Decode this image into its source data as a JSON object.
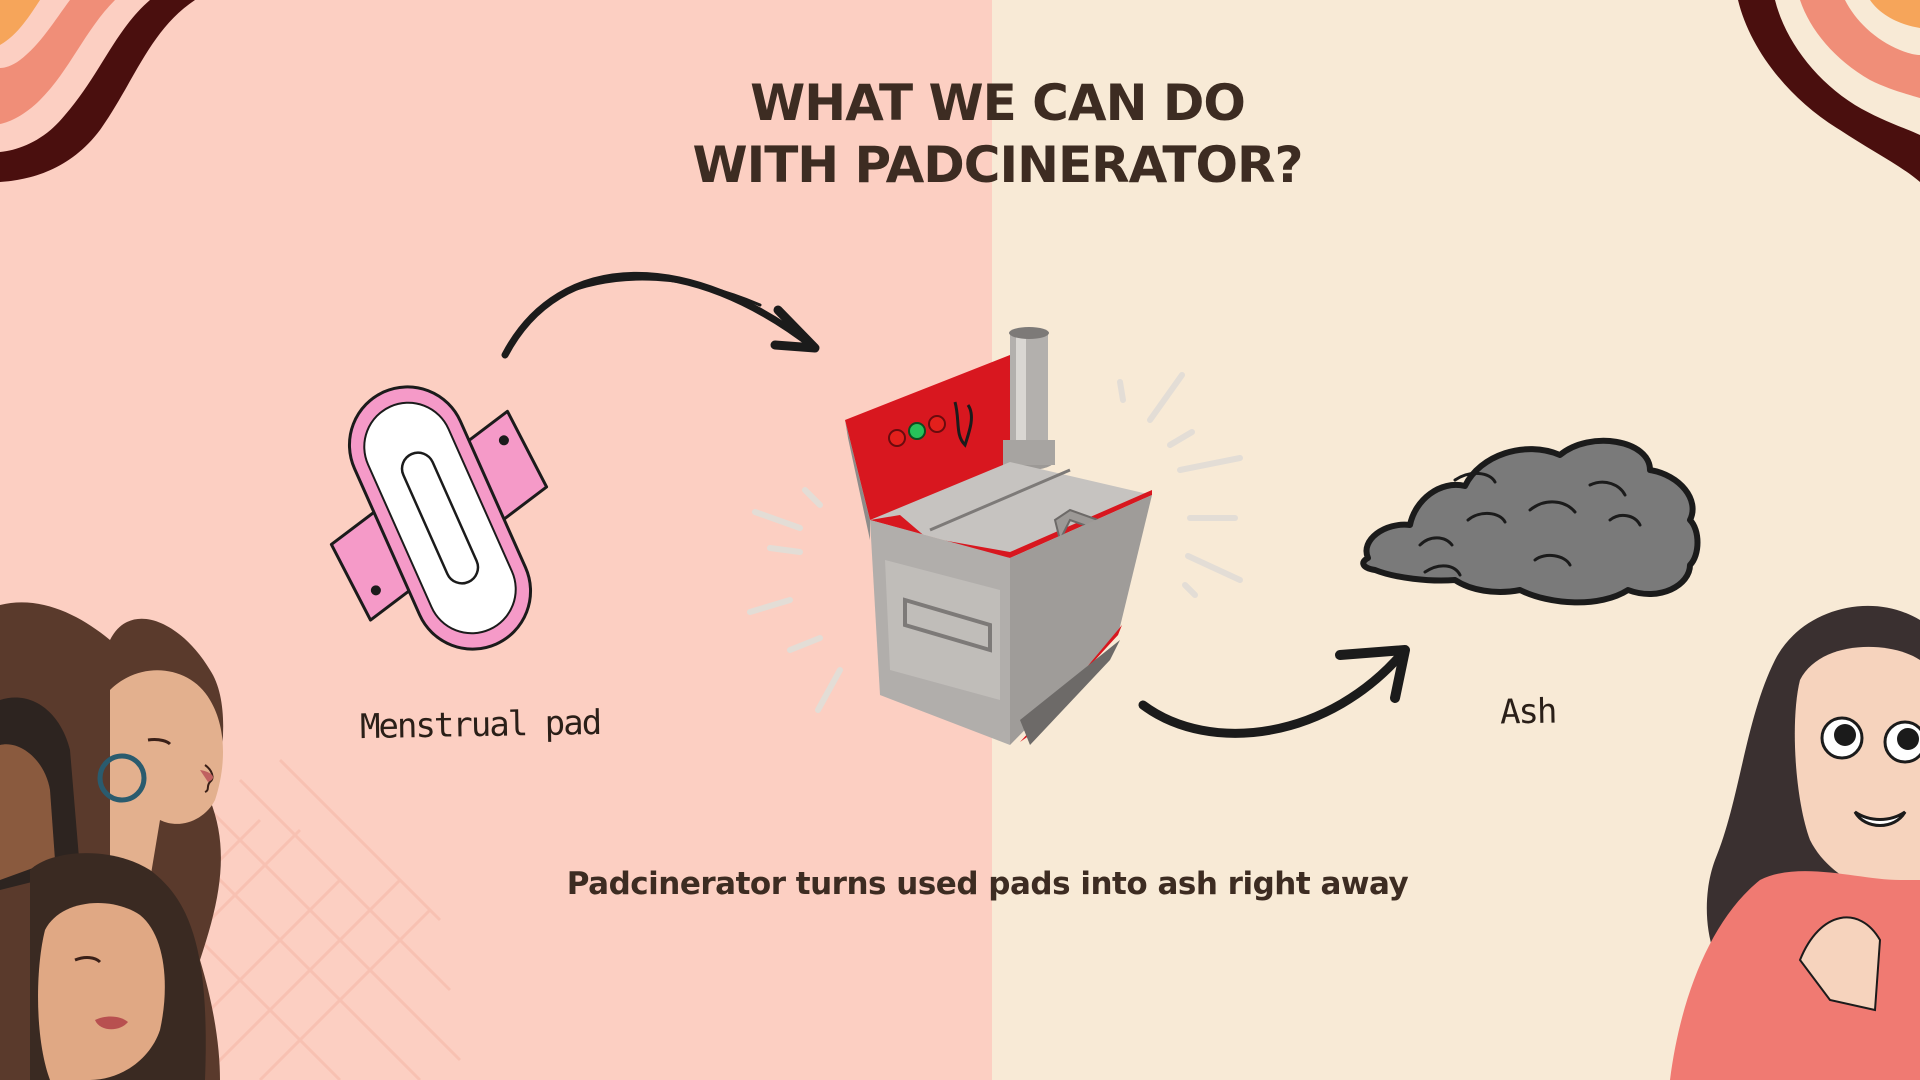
{
  "slide": {
    "title_line1": "WHAT WE CAN DO",
    "title_line2": "WITH PADCINERATOR?",
    "subtitle": "Padcinerator turns used pads into ash right away",
    "captions": {
      "pad": "Menstrual pad",
      "ash": "Ash"
    }
  },
  "colors": {
    "left_background": "#fccfc2",
    "right_background": "#f8ead6",
    "text": "#3d2c22",
    "pad_pink": "#f59ac8",
    "machine_red": "#d8171f",
    "machine_steel": "#a9a6a3",
    "ash_gray": "#7a7a7a"
  },
  "icons": [
    "menstrual-pad-icon",
    "padcinerator-machine-icon",
    "ash-pile-icon",
    "curved-arrow-icon"
  ]
}
